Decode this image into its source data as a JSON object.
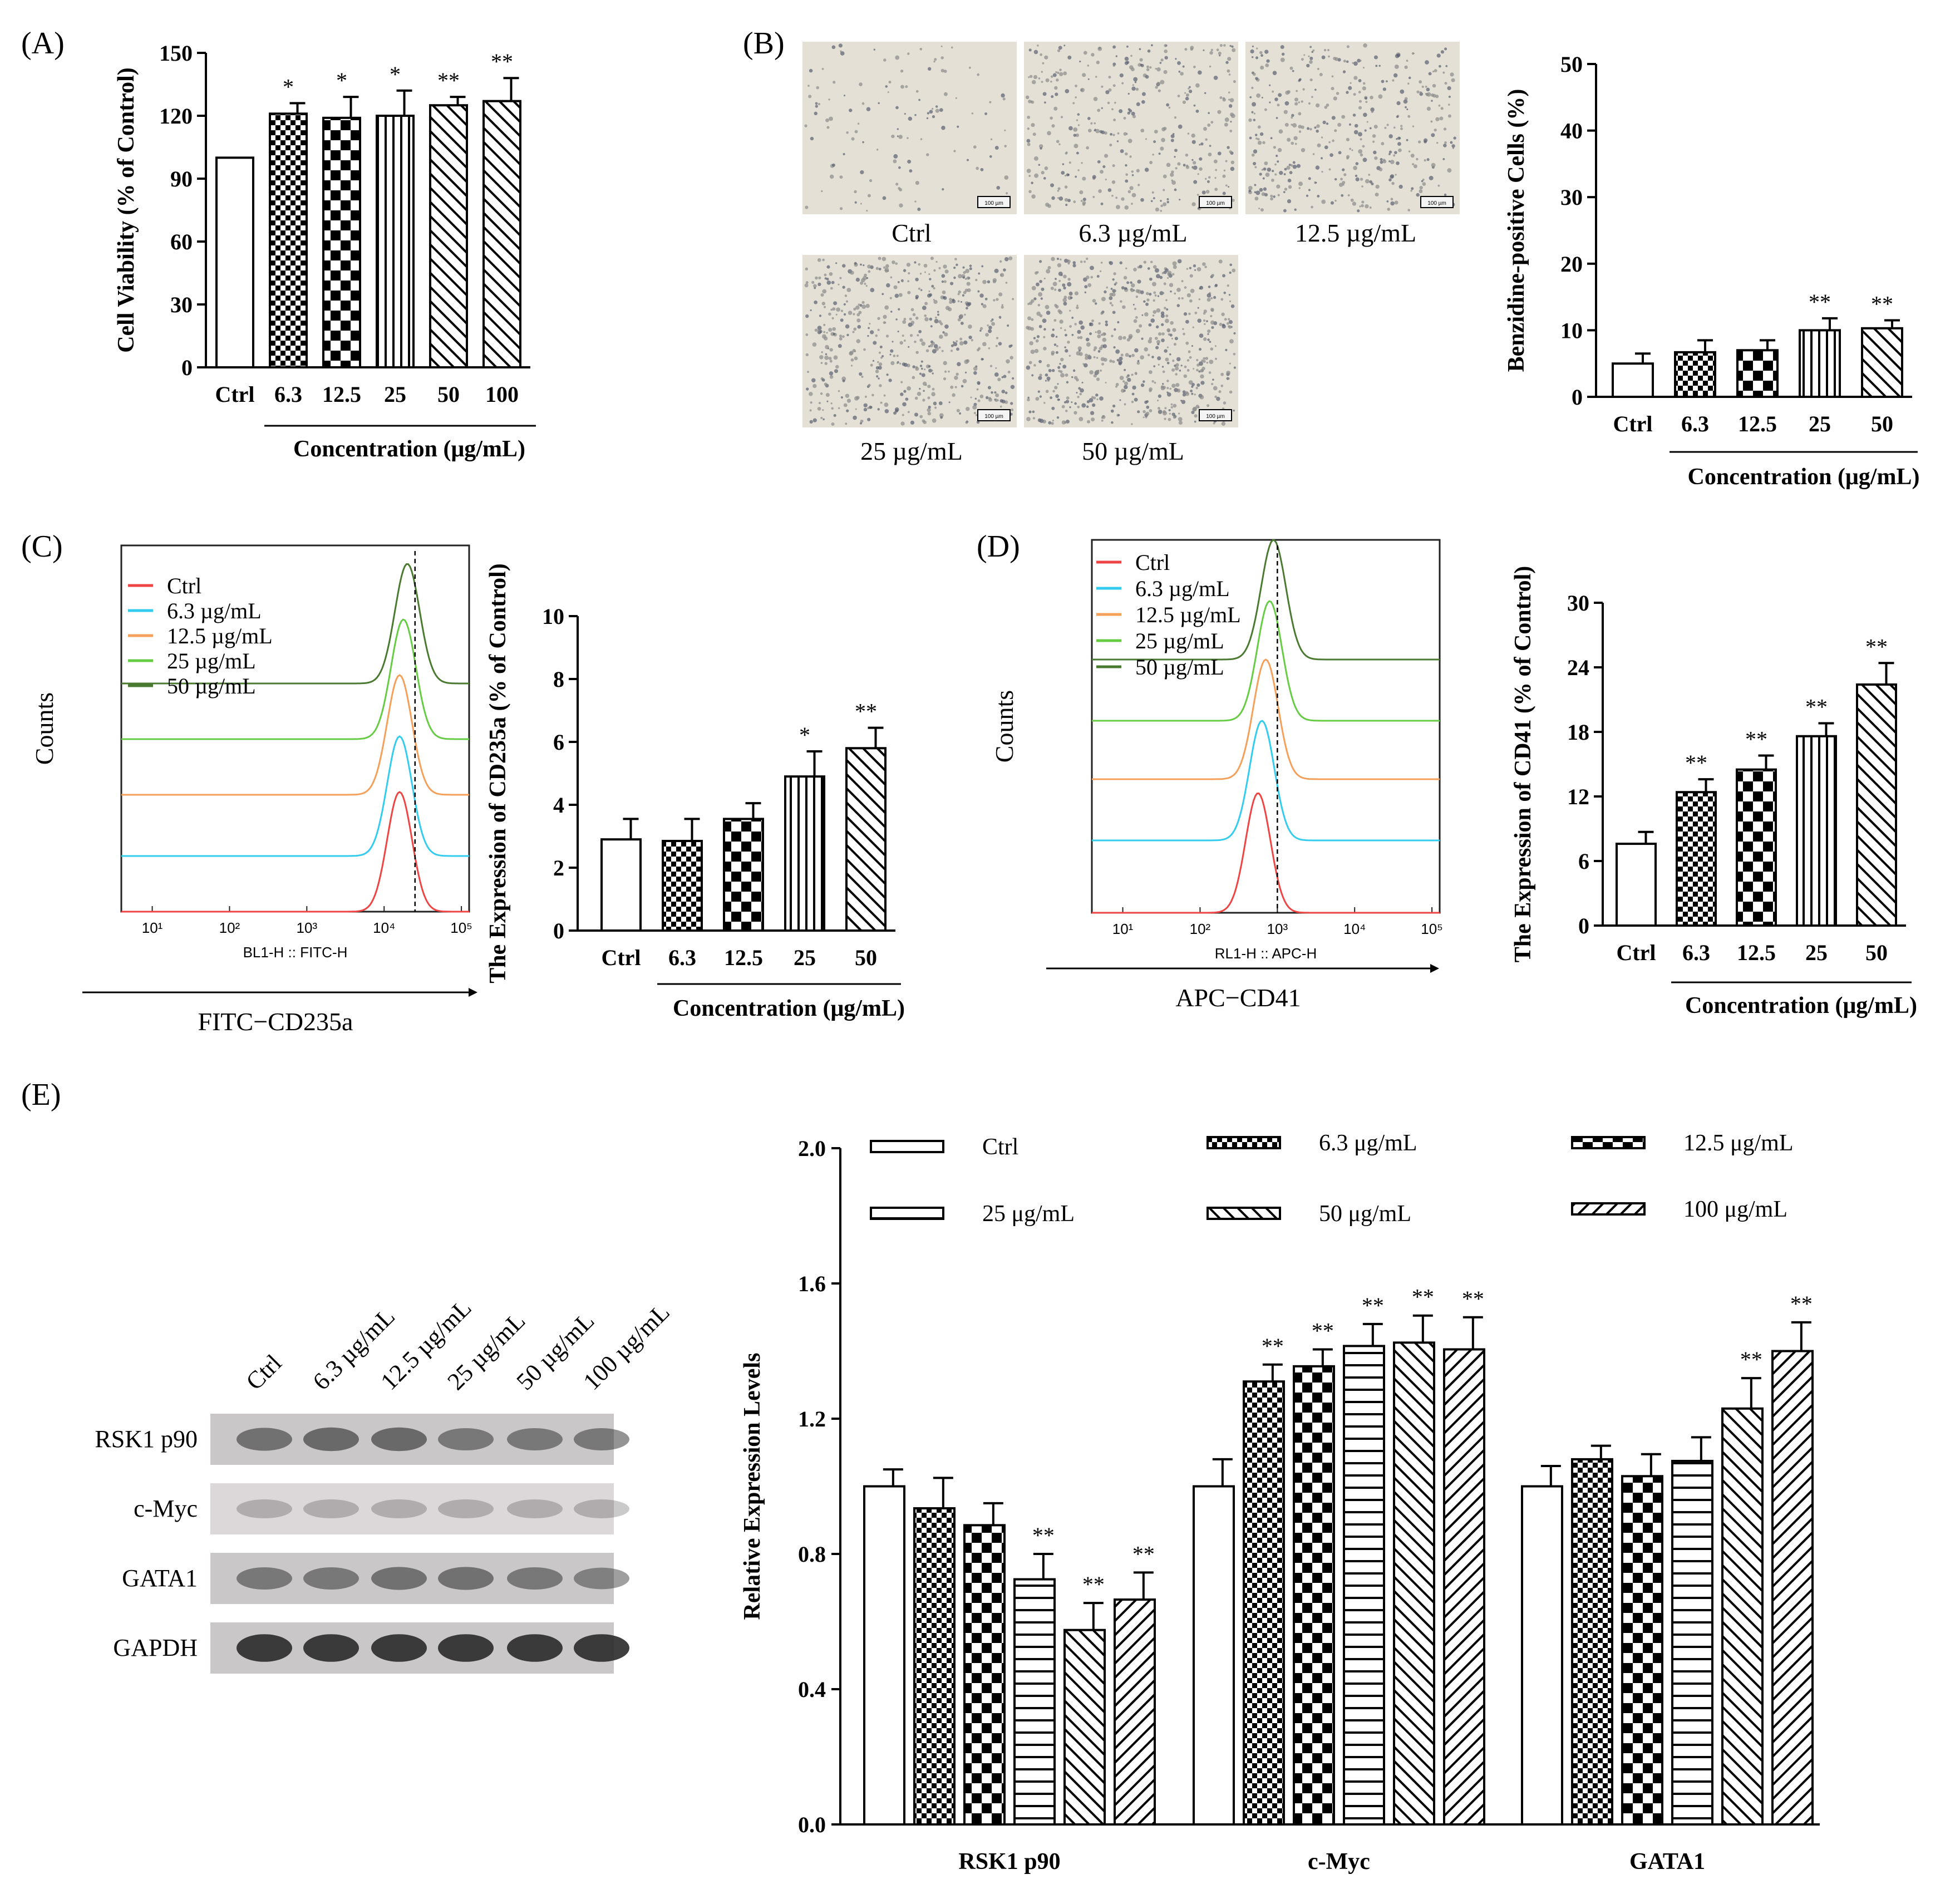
{
  "panel_labels": {
    "a": "(A)",
    "b": "(B)",
    "c": "(C)",
    "d": "(D)",
    "e": "(E)"
  },
  "micrographs": [
    {
      "label": "Ctrl",
      "density": 0.18
    },
    {
      "label": "6.3 µg/mL",
      "density": 0.55
    },
    {
      "label": "12.5 µg/mL",
      "density": 0.6
    },
    {
      "label": "25 µg/mL",
      "density": 0.8
    },
    {
      "label": "50 µg/mL",
      "density": 0.95
    }
  ],
  "scale_bar_label": "100 µm",
  "flow": {
    "c": {
      "legend": [
        "Ctrl",
        "6.3 µg/mL",
        "12.5 µg/mL",
        "25 µg/mL",
        "50 µg/mL"
      ],
      "ylabel": "Counts",
      "axis_label": "BL1-H :: FITC-H",
      "marker_label": "FITC−CD235a",
      "ticks": [
        "10¹",
        "10²",
        "10³",
        "10⁴",
        "10⁵"
      ],
      "peaks": [
        4.2,
        4.2,
        4.2,
        4.25,
        4.3
      ],
      "gate": 4.4,
      "colors": [
        "#ee4444",
        "#33ccee",
        "#f5a05a",
        "#66cc44",
        "#4a7a30"
      ]
    },
    "d": {
      "legend": [
        "Ctrl",
        "6.3 µg/mL",
        "12.5 µg/mL",
        "25 µg/mL",
        "50 µg/mL"
      ],
      "ylabel": "Counts",
      "axis_label": "RL1-H :: APC-H",
      "marker_label": "APC−CD41",
      "ticks": [
        "10¹",
        "10²",
        "10³",
        "10⁴",
        "10⁵"
      ],
      "peaks": [
        2.75,
        2.8,
        2.85,
        2.9,
        2.95
      ],
      "gate": 3.0,
      "colors": [
        "#ee4444",
        "#33ccee",
        "#f5a05a",
        "#66cc44",
        "#4a7a30"
      ]
    }
  },
  "western_blot": {
    "lanes": [
      "Ctrl",
      "6.3 µg/mL",
      "12.5 µg/mL",
      "25 µg/mL",
      "50 µg/mL",
      "100 µg/mL"
    ],
    "proteins": [
      "RSK1 p90",
      "c-Myc",
      "GATA1",
      "GAPDH"
    ],
    "intensity": [
      [
        0.55,
        0.6,
        0.6,
        0.5,
        0.5,
        0.5
      ],
      [
        0.25,
        0.25,
        0.25,
        0.25,
        0.25,
        0.25
      ],
      [
        0.5,
        0.5,
        0.55,
        0.55,
        0.5,
        0.45
      ],
      [
        0.9,
        0.9,
        0.9,
        0.9,
        0.9,
        0.9
      ]
    ]
  },
  "chart_data": [
    {
      "id": "A",
      "type": "bar",
      "title": "",
      "categories": [
        "Ctrl",
        "6.3",
        "12.5",
        "25",
        "50",
        "100"
      ],
      "values": [
        100,
        121,
        119,
        120,
        125,
        127
      ],
      "errors": [
        0,
        5,
        10,
        12,
        4,
        11
      ],
      "significance": [
        "",
        "*",
        "*",
        "*",
        "**",
        "**"
      ],
      "patterns": [
        "none",
        "check",
        "check2",
        "vert",
        "diag",
        "diag"
      ],
      "xlabel": "Concentration (μg/mL)",
      "ylabel": "Cell Viability (% of Control)",
      "ylim": [
        0,
        150
      ],
      "yticks": [
        "0",
        "30",
        "60",
        "90",
        "120",
        "150"
      ]
    },
    {
      "id": "B",
      "type": "bar",
      "title": "",
      "categories": [
        "Ctrl",
        "6.3",
        "12.5",
        "25",
        "50"
      ],
      "values": [
        5,
        6.7,
        7,
        10,
        10.3
      ],
      "errors": [
        1.5,
        1.8,
        1.5,
        1.8,
        1.2
      ],
      "significance": [
        "",
        "",
        "",
        "**",
        "**"
      ],
      "patterns": [
        "none",
        "check",
        "check2",
        "vert",
        "diag"
      ],
      "xlabel": "Concentration (μg/mL)",
      "ylabel": "Benzidine-positive Cells (%)",
      "ylim": [
        0,
        50
      ],
      "yticks": [
        "0",
        "10",
        "20",
        "30",
        "40",
        "50"
      ]
    },
    {
      "id": "C",
      "type": "bar",
      "title": "",
      "categories": [
        "Ctrl",
        "6.3",
        "12.5",
        "25",
        "50"
      ],
      "values": [
        2.9,
        2.85,
        3.55,
        4.9,
        5.8
      ],
      "errors": [
        0.65,
        0.7,
        0.5,
        0.8,
        0.65
      ],
      "significance": [
        "",
        "",
        "",
        "*",
        "**"
      ],
      "patterns": [
        "none",
        "check",
        "check2",
        "vert",
        "diag"
      ],
      "xlabel": "Concentration (μg/mL)",
      "ylabel": "The Expression of CD235a (% of Control)",
      "ylim": [
        0,
        10
      ],
      "yticks": [
        "0",
        "2",
        "4",
        "6",
        "8",
        "10"
      ]
    },
    {
      "id": "D",
      "type": "bar",
      "title": "",
      "categories": [
        "Ctrl",
        "6.3",
        "12.5",
        "25",
        "50"
      ],
      "values": [
        7.6,
        12.4,
        14.5,
        17.6,
        22.4
      ],
      "errors": [
        1.1,
        1.2,
        1.3,
        1.2,
        2.0
      ],
      "significance": [
        "",
        "**",
        "**",
        "**",
        "**"
      ],
      "patterns": [
        "none",
        "check",
        "check2",
        "vert",
        "diag"
      ],
      "xlabel": "Concentration (μg/mL)",
      "ylabel": "The Expression of CD41 (% of Control)",
      "ylim": [
        0,
        30
      ],
      "yticks": [
        "0",
        "6",
        "12",
        "18",
        "24",
        "30"
      ]
    },
    {
      "id": "E",
      "type": "bar",
      "title": "",
      "categories": [
        "RSK1 p90",
        "c-Myc",
        "GATA1"
      ],
      "series": [
        {
          "name": "Ctrl",
          "pattern": "none",
          "values": [
            1.0,
            1.0,
            1.0
          ],
          "errors": [
            0.05,
            0.08,
            0.06
          ],
          "significance": [
            "",
            "",
            ""
          ]
        },
        {
          "name": "6.3 μg/mL",
          "pattern": "check",
          "values": [
            0.935,
            1.31,
            1.08
          ],
          "errors": [
            0.09,
            0.05,
            0.04
          ],
          "significance": [
            "",
            "**",
            ""
          ]
        },
        {
          "name": "12.5 μg/mL",
          "pattern": "check2",
          "values": [
            0.885,
            1.355,
            1.03
          ],
          "errors": [
            0.065,
            0.05,
            0.065
          ],
          "significance": [
            "",
            "**",
            ""
          ]
        },
        {
          "name": "25 μg/mL",
          "pattern": "hlines",
          "values": [
            0.725,
            1.415,
            1.075
          ],
          "errors": [
            0.075,
            0.065,
            0.07
          ],
          "significance": [
            "**",
            "**",
            ""
          ]
        },
        {
          "name": "50 μg/mL",
          "pattern": "diag",
          "values": [
            0.575,
            1.425,
            1.23
          ],
          "errors": [
            0.08,
            0.08,
            0.09
          ],
          "significance": [
            "**",
            "**",
            "**"
          ]
        },
        {
          "name": "100 μg/mL",
          "pattern": "diag2",
          "values": [
            0.665,
            1.405,
            1.4
          ],
          "errors": [
            0.08,
            0.095,
            0.085
          ],
          "significance": [
            "**",
            "**",
            "**"
          ]
        }
      ],
      "xlabel": "",
      "ylabel": "Relative Expression Levels",
      "ylim": [
        0,
        2.0
      ],
      "yticks": [
        "0.0",
        "0.4",
        "0.8",
        "1.2",
        "1.6",
        "2.0"
      ]
    }
  ]
}
